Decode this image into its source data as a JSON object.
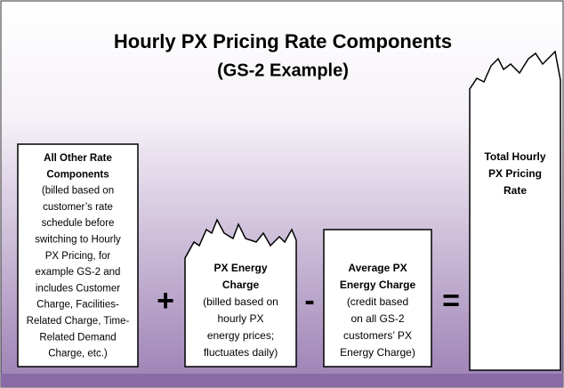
{
  "header": {
    "title": "Hourly PX Pricing Rate Components",
    "subtitle": "(GS-2 Example)"
  },
  "boxes": [
    {
      "heading_lines": [
        "All Other Rate",
        "Components"
      ],
      "body_lines": [
        "(billed based on",
        "customer’s rate",
        "schedule before",
        "switching to Hourly",
        "PX Pricing, for",
        "example GS-2 and",
        "includes Customer",
        "Charge, Facilities-",
        "Related Charge, Time-",
        "Related  Demand",
        "Charge, etc.)"
      ]
    },
    {
      "heading_lines": [
        "PX Energy",
        "Charge"
      ],
      "body_lines": [
        "(billed based on",
        "hourly PX",
        "energy prices;",
        "fluctuates daily)"
      ]
    },
    {
      "heading_lines": [
        "Average PX",
        "Energy Charge"
      ],
      "body_lines": [
        "(credit based",
        "on all GS-2",
        "customers’ PX",
        "Energy Charge)"
      ]
    },
    {
      "heading_lines": [
        "Total Hourly",
        "PX Pricing",
        "Rate"
      ],
      "body_lines": []
    }
  ],
  "operators": [
    "+",
    "-",
    "="
  ]
}
